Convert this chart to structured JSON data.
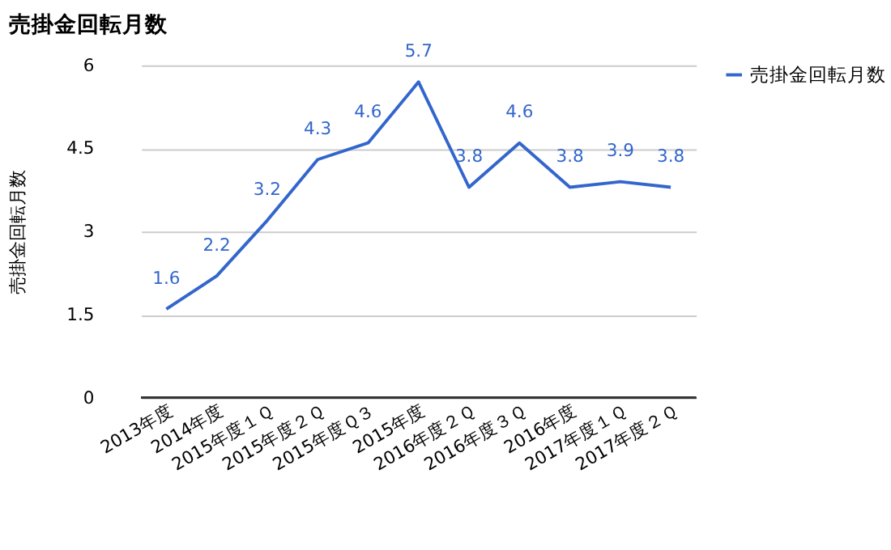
{
  "chart_data": {
    "type": "line",
    "title": "売掛金回転月数",
    "ylabel": "売掛金回転月数",
    "categories": [
      "2013年度",
      "2014年度",
      "2015年度１Ｑ",
      "2015年度２Ｑ",
      "2015年度Ｑ３",
      "2015年度",
      "2016年度２Ｑ",
      "2016年度３Ｑ",
      "2016年度",
      "2017年度１Ｑ",
      "2017年度２Ｑ"
    ],
    "series": [
      {
        "name": "売掛金回転月数",
        "color": "#3366cc",
        "values": [
          1.6,
          2.2,
          3.2,
          4.3,
          4.6,
          5.7,
          3.8,
          4.6,
          3.8,
          3.9,
          3.8
        ]
      }
    ],
    "ylim": [
      0,
      6
    ],
    "yticks": [
      0,
      1.5,
      3,
      4.5,
      6
    ],
    "grid": "y",
    "legend": "right",
    "data_labels": true,
    "marker": "none",
    "line_style": "solid"
  }
}
